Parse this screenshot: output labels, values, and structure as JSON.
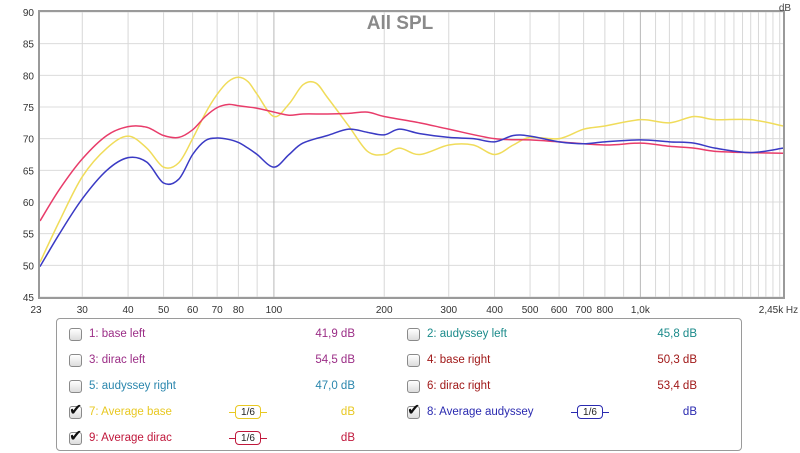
{
  "chart_data": {
    "type": "line",
    "title": "All SPL",
    "ylabel": "dB",
    "xlabel": "Hz",
    "x_scale": "log",
    "xlim": [
      23,
      2450
    ],
    "ylim": [
      45,
      90
    ],
    "y_ticks": [
      45,
      50,
      55,
      60,
      65,
      70,
      75,
      80,
      85,
      90
    ],
    "x_ticks": [
      {
        "value": 23,
        "label": "23"
      },
      {
        "value": 30,
        "label": "30"
      },
      {
        "value": 40,
        "label": "40"
      },
      {
        "value": 50,
        "label": "50"
      },
      {
        "value": 60,
        "label": "60"
      },
      {
        "value": 70,
        "label": "70"
      },
      {
        "value": 80,
        "label": "80"
      },
      {
        "value": 100,
        "label": "100"
      },
      {
        "value": 200,
        "label": "200"
      },
      {
        "value": 300,
        "label": "300"
      },
      {
        "value": 400,
        "label": "400"
      },
      {
        "value": 500,
        "label": "500"
      },
      {
        "value": 600,
        "label": "600"
      },
      {
        "value": 700,
        "label": "700"
      },
      {
        "value": 800,
        "label": "800"
      },
      {
        "value": 1000,
        "label": "1,0k"
      },
      {
        "value": 2450,
        "label": "2,45k"
      }
    ],
    "grid": true,
    "series": [
      {
        "name": "Average base",
        "color": "#f0dc5a",
        "x": [
          23,
          26,
          30,
          35,
          40,
          45,
          50,
          55,
          60,
          65,
          70,
          75,
          80,
          85,
          90,
          100,
          110,
          120,
          130,
          140,
          160,
          180,
          200,
          220,
          250,
          300,
          350,
          400,
          450,
          500,
          600,
          700,
          800,
          1000,
          1200,
          1400,
          1600,
          2000,
          2450
        ],
        "y": [
          50.5,
          57,
          64,
          68.5,
          70.4,
          68.5,
          65.5,
          66.2,
          70,
          74,
          77,
          79,
          79.7,
          79,
          77,
          73.5,
          75.5,
          78.5,
          78.8,
          76.5,
          72,
          68,
          67.5,
          68.5,
          67.5,
          69,
          69,
          67.5,
          69,
          70.2,
          70,
          71.5,
          72,
          73,
          72.5,
          73.5,
          73,
          73,
          72
        ]
      },
      {
        "name": "Average dirac",
        "color": "#e83c6a",
        "x": [
          23,
          26,
          30,
          35,
          40,
          45,
          50,
          55,
          60,
          65,
          70,
          75,
          80,
          85,
          90,
          100,
          110,
          120,
          140,
          160,
          180,
          200,
          250,
          300,
          400,
          500,
          600,
          800,
          1000,
          1200,
          1400,
          1600,
          2000,
          2450
        ],
        "y": [
          57,
          62,
          66.8,
          70.5,
          71.9,
          71.8,
          70.5,
          70.2,
          71.4,
          73.5,
          74.9,
          75.4,
          75.2,
          75,
          74.8,
          74.2,
          73.7,
          73.9,
          73.9,
          74,
          74.2,
          73.5,
          72.5,
          71.5,
          70,
          69.8,
          69.5,
          69,
          69.3,
          68.8,
          68.5,
          68,
          67.8,
          67.7
        ]
      },
      {
        "name": "Average audyssey",
        "color": "#3a3ac4",
        "x": [
          23,
          26,
          30,
          35,
          40,
          45,
          50,
          55,
          60,
          65,
          70,
          75,
          80,
          85,
          90,
          100,
          110,
          120,
          140,
          160,
          180,
          200,
          220,
          250,
          300,
          350,
          400,
          450,
          500,
          600,
          700,
          800,
          1000,
          1200,
          1400,
          1600,
          2000,
          2450
        ],
        "y": [
          49.8,
          55,
          60.5,
          65,
          67,
          66.3,
          63,
          63.6,
          67.5,
          69.7,
          70.1,
          69.9,
          69.4,
          68.5,
          67.5,
          65.5,
          67.5,
          69.3,
          70.5,
          71.5,
          71,
          70.6,
          71.5,
          70.8,
          70.2,
          70,
          69.5,
          70.5,
          70.4,
          69.5,
          69.2,
          69.5,
          69.8,
          69.5,
          69.3,
          68.5,
          67.8,
          68.5
        ]
      }
    ]
  },
  "legend": {
    "items": [
      {
        "label": "1: base left",
        "value": "41,9 dB",
        "color": "#9b2d86",
        "checked": false
      },
      {
        "label": "2: audyssey left",
        "value": "45,8 dB",
        "color": "#1a8a8a",
        "checked": false
      },
      {
        "label": "3: dirac left",
        "value": "54,5 dB",
        "color": "#9b2d86",
        "checked": false
      },
      {
        "label": "4: base right",
        "value": "50,3 dB",
        "color": "#a01818",
        "checked": false
      },
      {
        "label": "5: audyssey right",
        "value": "47,0 dB",
        "color": "#2a86ad",
        "checked": false
      },
      {
        "label": "6: dirac right",
        "value": "53,4 dB",
        "color": "#a01818",
        "checked": false
      },
      {
        "label": "7: Average base",
        "value": "dB",
        "color": "#e8c822",
        "checked": true,
        "smoothing": "1/6",
        "smooth_color": "#e8c822"
      },
      {
        "label": "8: Average audyssey",
        "value": "dB",
        "color": "#2a2ab0",
        "checked": true,
        "smoothing": "1/6",
        "smooth_color": "#2a2ab0"
      },
      {
        "label": "9: Average dirac",
        "value": "dB",
        "color": "#c0183c",
        "checked": true,
        "smoothing": "1/6",
        "smooth_color": "#c0183c"
      }
    ]
  }
}
